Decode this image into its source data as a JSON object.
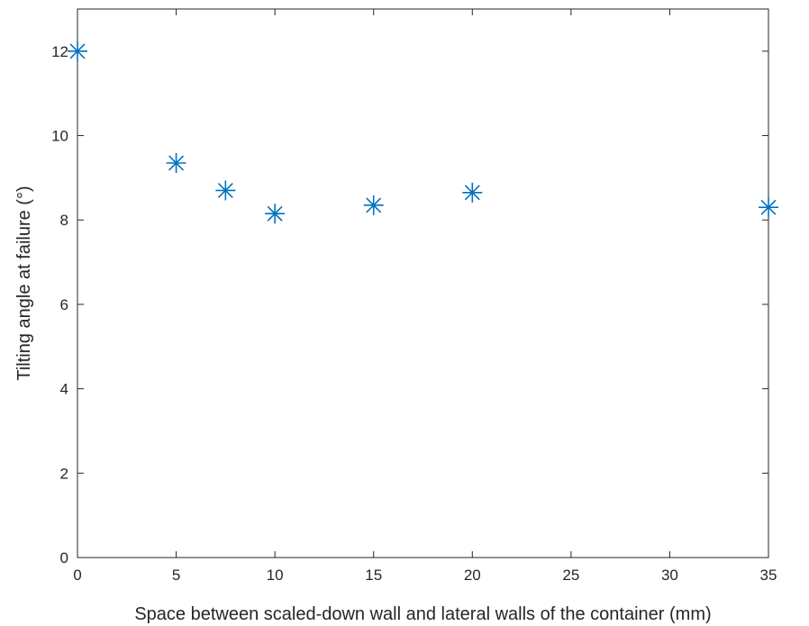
{
  "chart_data": {
    "type": "scatter",
    "title": "",
    "xlabel": "Space between scaled-down wall and lateral walls of the container (mm)",
    "ylabel": "Tilting angle at failure (°)",
    "xlim": [
      0,
      35
    ],
    "ylim": [
      0,
      13
    ],
    "xticks": [
      0,
      5,
      10,
      15,
      20,
      25,
      30,
      35
    ],
    "yticks": [
      0,
      2,
      4,
      6,
      8,
      10,
      12
    ],
    "grid": false,
    "marker": "asterisk",
    "color": "#0072BD",
    "series": [
      {
        "x": [
          0,
          5,
          7.5,
          10,
          15,
          20,
          35
        ],
        "y": [
          12.0,
          9.35,
          8.7,
          8.15,
          8.35,
          8.65,
          8.3
        ]
      }
    ]
  }
}
